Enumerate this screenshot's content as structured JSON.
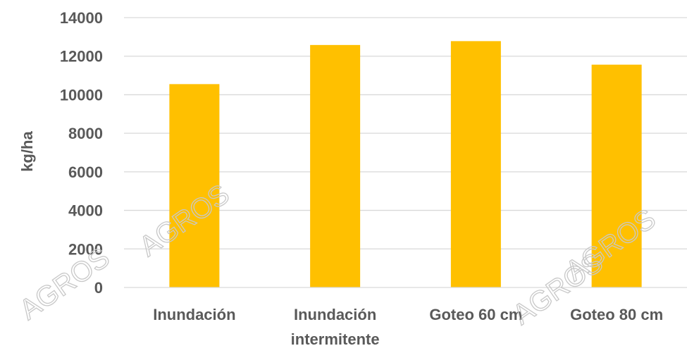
{
  "chart_data": {
    "type": "bar",
    "title": "",
    "xlabel": "",
    "ylabel": "kg/ha",
    "categories": [
      [
        "Inundación"
      ],
      [
        "Inundación",
        "intermitente"
      ],
      [
        "Goteo 60 cm"
      ],
      [
        "Goteo 80 cm"
      ]
    ],
    "series": [
      {
        "values": [
          10550,
          12580,
          12780,
          11560
        ]
      }
    ],
    "ylim": [
      0,
      14000
    ],
    "yticks": [
      0,
      2000,
      4000,
      6000,
      8000,
      10000,
      12000,
      14000
    ],
    "grid": true,
    "legend": "none",
    "colors": {
      "bar": "#ffc000",
      "grid": "#d9d9d9",
      "text": "#595959"
    }
  },
  "watermark": {
    "text": "AGROS"
  }
}
